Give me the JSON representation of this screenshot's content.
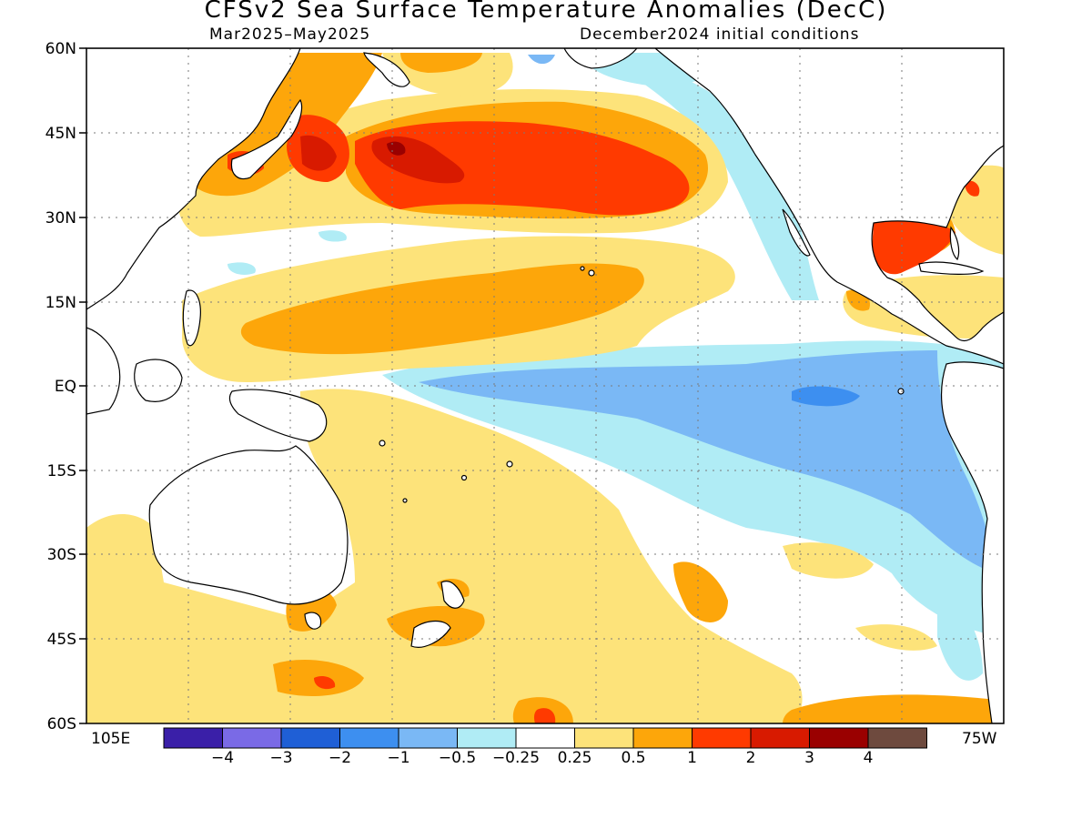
{
  "title": "CFSv2 Sea Surface Temperature Anomalies (DecC)",
  "subtitle_left": "Mar2025–May2025",
  "subtitle_right": "December2024 initial conditions",
  "lat_labels": [
    "60N",
    "45N",
    "30N",
    "15N",
    "EQ",
    "15S",
    "30S",
    "45S",
    "60S"
  ],
  "lon_labels": [
    "105E",
    "75W"
  ],
  "colorbar": {
    "colors": [
      "#3a1fa8",
      "#7a6ae6",
      "#1f5fd6",
      "#3d8ff0",
      "#7ab8f5",
      "#b0ecf5",
      "#ffffff",
      "#fde37a",
      "#fda60a",
      "#ff3a00",
      "#d81a00",
      "#9a0000",
      "#6e4a3e"
    ],
    "labels": [
      "−4",
      "−3",
      "−2",
      "−1",
      "−0.5",
      "−0.25",
      "0.25",
      "0.5",
      "1",
      "2",
      "3",
      "4"
    ]
  }
}
